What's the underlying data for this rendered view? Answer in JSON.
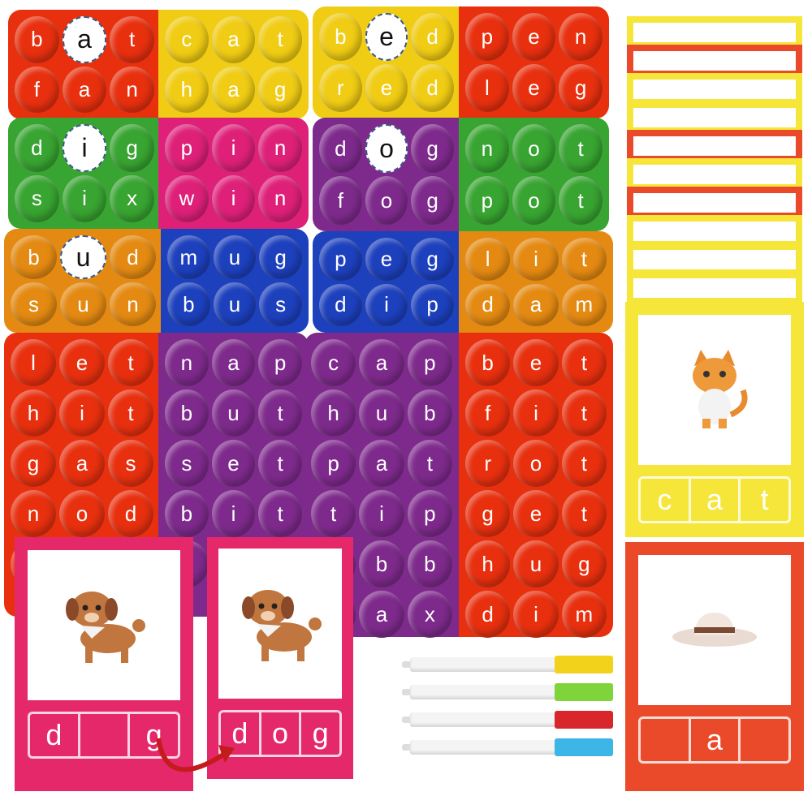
{
  "colors": {
    "red": "#e8300f",
    "yellow": "#f0cc14",
    "green": "#38a431",
    "pink": "#de2079",
    "purple": "#7e2a8c",
    "orange": "#e48a12",
    "blue": "#1d40bd",
    "card_pink": "#e5286a",
    "card_yellow": "#f6e63a",
    "card_red": "#ea4a2a"
  },
  "halves": [
    {
      "color": "red",
      "rows": [
        [
          "b",
          "a",
          "t"
        ],
        [
          "f",
          "a",
          "n"
        ]
      ]
    },
    {
      "color": "yellow",
      "rows": [
        [
          "c",
          "a",
          "t"
        ],
        [
          "h",
          "a",
          "g"
        ]
      ]
    },
    {
      "color": "yellow",
      "rows": [
        [
          "b",
          "e",
          "d"
        ],
        [
          "r",
          "e",
          "d"
        ]
      ]
    },
    {
      "color": "red",
      "rows": [
        [
          "p",
          "e",
          "n"
        ],
        [
          "l",
          "e",
          "g"
        ]
      ]
    },
    {
      "color": "green",
      "rows": [
        [
          "d",
          "i",
          "g"
        ],
        [
          "s",
          "i",
          "x"
        ]
      ]
    },
    {
      "color": "pink",
      "rows": [
        [
          "p",
          "i",
          "n"
        ],
        [
          "w",
          "i",
          "n"
        ]
      ]
    },
    {
      "color": "purple",
      "rows": [
        [
          "d",
          "o",
          "g"
        ],
        [
          "f",
          "o",
          "g"
        ]
      ]
    },
    {
      "color": "green",
      "rows": [
        [
          "n",
          "o",
          "t"
        ],
        [
          "p",
          "o",
          "t"
        ]
      ]
    },
    {
      "color": "orange",
      "rows": [
        [
          "b",
          "u",
          "d"
        ],
        [
          "s",
          "u",
          "n"
        ]
      ]
    },
    {
      "color": "blue",
      "rows": [
        [
          "m",
          "u",
          "g"
        ],
        [
          "b",
          "u",
          "s"
        ]
      ]
    },
    {
      "color": "blue",
      "rows": [
        [
          "p",
          "e",
          "g"
        ],
        [
          "d",
          "i",
          "p"
        ]
      ]
    },
    {
      "color": "orange",
      "rows": [
        [
          "l",
          "i",
          "t"
        ],
        [
          "d",
          "a",
          "m"
        ]
      ]
    },
    {
      "color": "red",
      "rows": [
        [
          "l",
          "e",
          "t"
        ],
        [
          "h",
          "i",
          "t"
        ],
        [
          "g",
          "a",
          "s"
        ],
        [
          "n",
          "o",
          "d"
        ],
        [
          "",
          "",
          ""
        ]
      ]
    },
    {
      "color": "purple",
      "rows": [
        [
          "n",
          "a",
          "p"
        ],
        [
          "b",
          "u",
          "t"
        ],
        [
          "s",
          "e",
          "t"
        ],
        [
          "b",
          "i",
          "t"
        ],
        [
          "",
          "",
          ""
        ]
      ]
    },
    {
      "color": "purple",
      "rows": [
        [
          "c",
          "a",
          "p"
        ],
        [
          "h",
          "u",
          "b"
        ],
        [
          "p",
          "a",
          "t"
        ],
        [
          "t",
          "i",
          "p"
        ],
        [
          "",
          "b",
          "b"
        ],
        [
          "",
          "a",
          "x"
        ]
      ]
    },
    {
      "color": "red",
      "rows": [
        [
          "b",
          "e",
          "t"
        ],
        [
          "f",
          "i",
          "t"
        ],
        [
          "r",
          "o",
          "t"
        ],
        [
          "g",
          "e",
          "t"
        ],
        [
          "h",
          "u",
          "g"
        ],
        [
          "d",
          "i",
          "m"
        ]
      ]
    }
  ],
  "vowels": [
    "a",
    "e",
    "i",
    "o",
    "u"
  ],
  "cards": {
    "dog_incomplete": {
      "letters": [
        "d",
        "",
        "g"
      ],
      "picture": "dog"
    },
    "dog_complete": {
      "letters": [
        "d",
        "o",
        "g"
      ],
      "picture": "dog"
    },
    "cat": {
      "letters": [
        "c",
        "a",
        "t"
      ],
      "picture": "cat"
    },
    "hat": {
      "letters": [
        "",
        "a",
        ""
      ],
      "picture": "hat"
    }
  },
  "markers": [
    {
      "color": "#f2d21a"
    },
    {
      "color": "#7ed43a"
    },
    {
      "color": "#d8262a"
    },
    {
      "color": "#3cb6e6"
    }
  ]
}
